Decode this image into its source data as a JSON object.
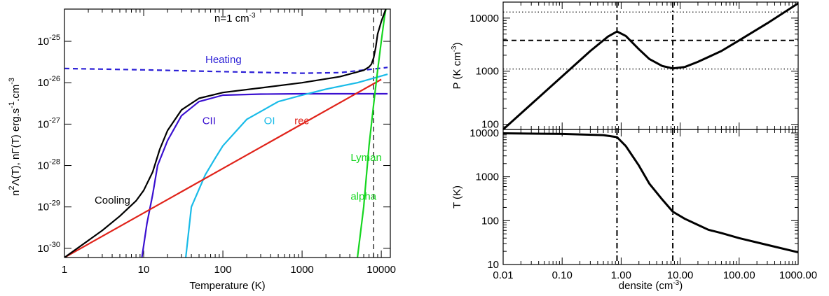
{
  "chart_data": [
    {
      "type": "line",
      "xscale": "log",
      "yscale": "log",
      "xlim": [
        1,
        13000
      ],
      "ylim": [
        6e-31,
        6e-25
      ],
      "xlabel": "Temperature (K)",
      "ylabel_parts": {
        "a": "n",
        "a_sup": "2",
        "b": "Λ(T), nΓ(T) erg.s",
        "b_sup": "-1",
        "c": ".cm",
        "c_sup": "-3"
      },
      "annotation": {
        "text": "n=1 cm",
        "sup": "-3"
      },
      "xticks": [
        {
          "v": 1,
          "label": "1"
        },
        {
          "v": 10,
          "label": "10"
        },
        {
          "v": 100,
          "label": "100"
        },
        {
          "v": 1000,
          "label": "1000"
        },
        {
          "v": 10000,
          "label": "10000"
        }
      ],
      "yticks": [
        {
          "v": 1e-30,
          "base": "10",
          "exp": "-30"
        },
        {
          "v": 1e-29,
          "base": "10",
          "exp": "-29"
        },
        {
          "v": 1e-28,
          "base": "10",
          "exp": "-28"
        },
        {
          "v": 1e-27,
          "base": "10",
          "exp": "-27"
        },
        {
          "v": 1e-26,
          "base": "10",
          "exp": "-26"
        },
        {
          "v": 1e-25,
          "base": "10",
          "exp": "-25"
        }
      ],
      "vline": {
        "x": 8000,
        "style": "dashed"
      },
      "series": [
        {
          "name": "Heating",
          "color": "#2b1fd6",
          "dash": "dashed",
          "label_pos": {
            "x": 60,
            "y": 3e-26
          },
          "points": [
            [
              1,
              2.2e-26
            ],
            [
              10,
              2.05e-26
            ],
            [
              100,
              1.85e-26
            ],
            [
              1000,
              1.7e-26
            ],
            [
              3000,
              1.75e-26
            ],
            [
              10000,
              2.25e-26
            ],
            [
              12000,
              2.35e-26
            ]
          ]
        },
        {
          "name": "CII",
          "color": "#3a10d0",
          "dash": "solid",
          "label_pos": {
            "x": 55,
            "y": 1e-27
          },
          "points": [
            [
              9.5,
              6e-31
            ],
            [
              11,
              4e-30
            ],
            [
              13,
              2e-29
            ],
            [
              15,
              1e-28
            ],
            [
              20,
              4e-28
            ],
            [
              30,
              1.6e-27
            ],
            [
              50,
              3.5e-27
            ],
            [
              100,
              5e-27
            ],
            [
              300,
              5.3e-27
            ],
            [
              1000,
              5.4e-27
            ],
            [
              12000,
              5.4e-27
            ]
          ]
        },
        {
          "name": "OI",
          "color": "#19bbe8",
          "dash": "solid",
          "label_pos": {
            "x": 330,
            "y": 1e-27
          },
          "points": [
            [
              34,
              6e-31
            ],
            [
              40,
              1e-29
            ],
            [
              60,
              6e-29
            ],
            [
              80,
              1.5e-28
            ],
            [
              100,
              3e-28
            ],
            [
              200,
              1.3e-27
            ],
            [
              500,
              3.5e-27
            ],
            [
              1000,
              5e-27
            ],
            [
              2000,
              7e-27
            ],
            [
              5000,
              1e-26
            ],
            [
              12000,
              1.6e-26
            ]
          ]
        },
        {
          "name": "rec",
          "color": "#e0231a",
          "dash": "solid",
          "label_pos": {
            "x": 800,
            "y": 1e-27
          },
          "points": [
            [
              1,
              6e-31
            ],
            [
              10000,
              1.2e-26
            ]
          ]
        },
        {
          "name": "Lyman",
          "name2": "alpha",
          "color": "#16d620",
          "dash": "solid",
          "label_pos": {
            "x": 4100,
            "y": 1.3e-28
          },
          "label2_pos": {
            "x": 4100,
            "y": 1.5e-29
          },
          "points": [
            [
              5000,
              6e-31
            ],
            [
              6000,
              1e-29
            ],
            [
              7000,
              3e-28
            ],
            [
              8000,
              3e-27
            ],
            [
              9000,
              2e-26
            ],
            [
              10000,
              1e-25
            ],
            [
              11000,
              4e-25
            ],
            [
              12000,
              1e-24
            ]
          ]
        },
        {
          "name": "Cooling",
          "color": "#000000",
          "dash": "solid",
          "label_pos": {
            "x": 2.4,
            "y": 1.2e-29
          },
          "points": [
            [
              1,
              6e-31
            ],
            [
              3,
              2.7e-30
            ],
            [
              5,
              6e-30
            ],
            [
              8,
              1.4e-29
            ],
            [
              10,
              2.5e-29
            ],
            [
              13,
              7e-29
            ],
            [
              16,
              2.5e-28
            ],
            [
              20,
              7e-28
            ],
            [
              30,
              2.2e-27
            ],
            [
              50,
              4.2e-27
            ],
            [
              100,
              5.8e-27
            ],
            [
              300,
              7.5e-27
            ],
            [
              1000,
              1e-26
            ],
            [
              3000,
              1.4e-26
            ],
            [
              6000,
              2e-26
            ],
            [
              7000,
              2.4e-26
            ],
            [
              7500,
              2.8e-26
            ],
            [
              8000,
              4e-26
            ],
            [
              8500,
              7e-26
            ],
            [
              9000,
              1.5e-25
            ],
            [
              10000,
              3e-25
            ],
            [
              11000,
              5e-25
            ],
            [
              12000,
              8e-25
            ]
          ]
        }
      ]
    },
    {
      "type": "line",
      "xscale": "log",
      "yscale": "log",
      "xlim": [
        0.01,
        1000
      ],
      "ylim": [
        80,
        20000
      ],
      "ylabel": "P (K cm",
      "ylabel_sup": "-3",
      "ylabel_end": ")",
      "yticks": [
        {
          "v": 100,
          "label": "100"
        },
        {
          "v": 1000,
          "label": "1000"
        },
        {
          "v": 10000,
          "label": "10000"
        }
      ],
      "hlines": [
        {
          "y": 13000,
          "style": "dotted"
        },
        {
          "y": 3800,
          "style": "dashed"
        },
        {
          "y": 1100,
          "style": "dotted"
        }
      ],
      "vlines": [
        {
          "x": 0.85,
          "style": "dashdot"
        },
        {
          "x": 7.5,
          "style": "dashdot"
        }
      ],
      "series": [
        {
          "name": "",
          "color": "#000000",
          "points": [
            [
              0.01,
              80
            ],
            [
              0.1,
              800
            ],
            [
              0.3,
              2400
            ],
            [
              0.6,
              4500
            ],
            [
              0.85,
              5600
            ],
            [
              1.2,
              4600
            ],
            [
              2,
              2600
            ],
            [
              3,
              1700
            ],
            [
              5,
              1250
            ],
            [
              7.5,
              1130
            ],
            [
              12,
              1200
            ],
            [
              20,
              1500
            ],
            [
              50,
              2400
            ],
            [
              100,
              3800
            ],
            [
              300,
              8000
            ],
            [
              1000,
              19000
            ]
          ]
        }
      ]
    },
    {
      "type": "line",
      "xscale": "log",
      "yscale": "log",
      "xlim": [
        0.01,
        1000
      ],
      "ylim": [
        10,
        12000
      ],
      "ylabel": "T (K)",
      "xlabel": "densite (cm",
      "xlabel_sup": "-3",
      "xlabel_end": ")",
      "xticks": [
        {
          "v": 0.01,
          "label": "0.01"
        },
        {
          "v": 0.1,
          "label": "0.10"
        },
        {
          "v": 1,
          "label": "1.00"
        },
        {
          "v": 10,
          "label": "10.00"
        },
        {
          "v": 100,
          "label": "100.00"
        },
        {
          "v": 1000,
          "label": "1000.00"
        }
      ],
      "yticks": [
        {
          "v": 10,
          "label": "10"
        },
        {
          "v": 100,
          "label": "100"
        },
        {
          "v": 1000,
          "label": "1000"
        },
        {
          "v": 10000,
          "label": "10000"
        }
      ],
      "vlines": [
        {
          "x": 0.85,
          "style": "dashdot"
        },
        {
          "x": 7.5,
          "style": "dashdot"
        }
      ],
      "series": [
        {
          "name": "",
          "color": "#000000",
          "points": [
            [
              0.01,
              9800
            ],
            [
              0.1,
              9500
            ],
            [
              0.5,
              8900
            ],
            [
              0.85,
              8000
            ],
            [
              1.2,
              5000
            ],
            [
              2,
              1800
            ],
            [
              3,
              700
            ],
            [
              5,
              300
            ],
            [
              7.5,
              160
            ],
            [
              12,
              110
            ],
            [
              20,
              80
            ],
            [
              30,
              62
            ],
            [
              50,
              52
            ],
            [
              100,
              40
            ],
            [
              300,
              28
            ],
            [
              1000,
              19
            ]
          ]
        }
      ]
    }
  ]
}
